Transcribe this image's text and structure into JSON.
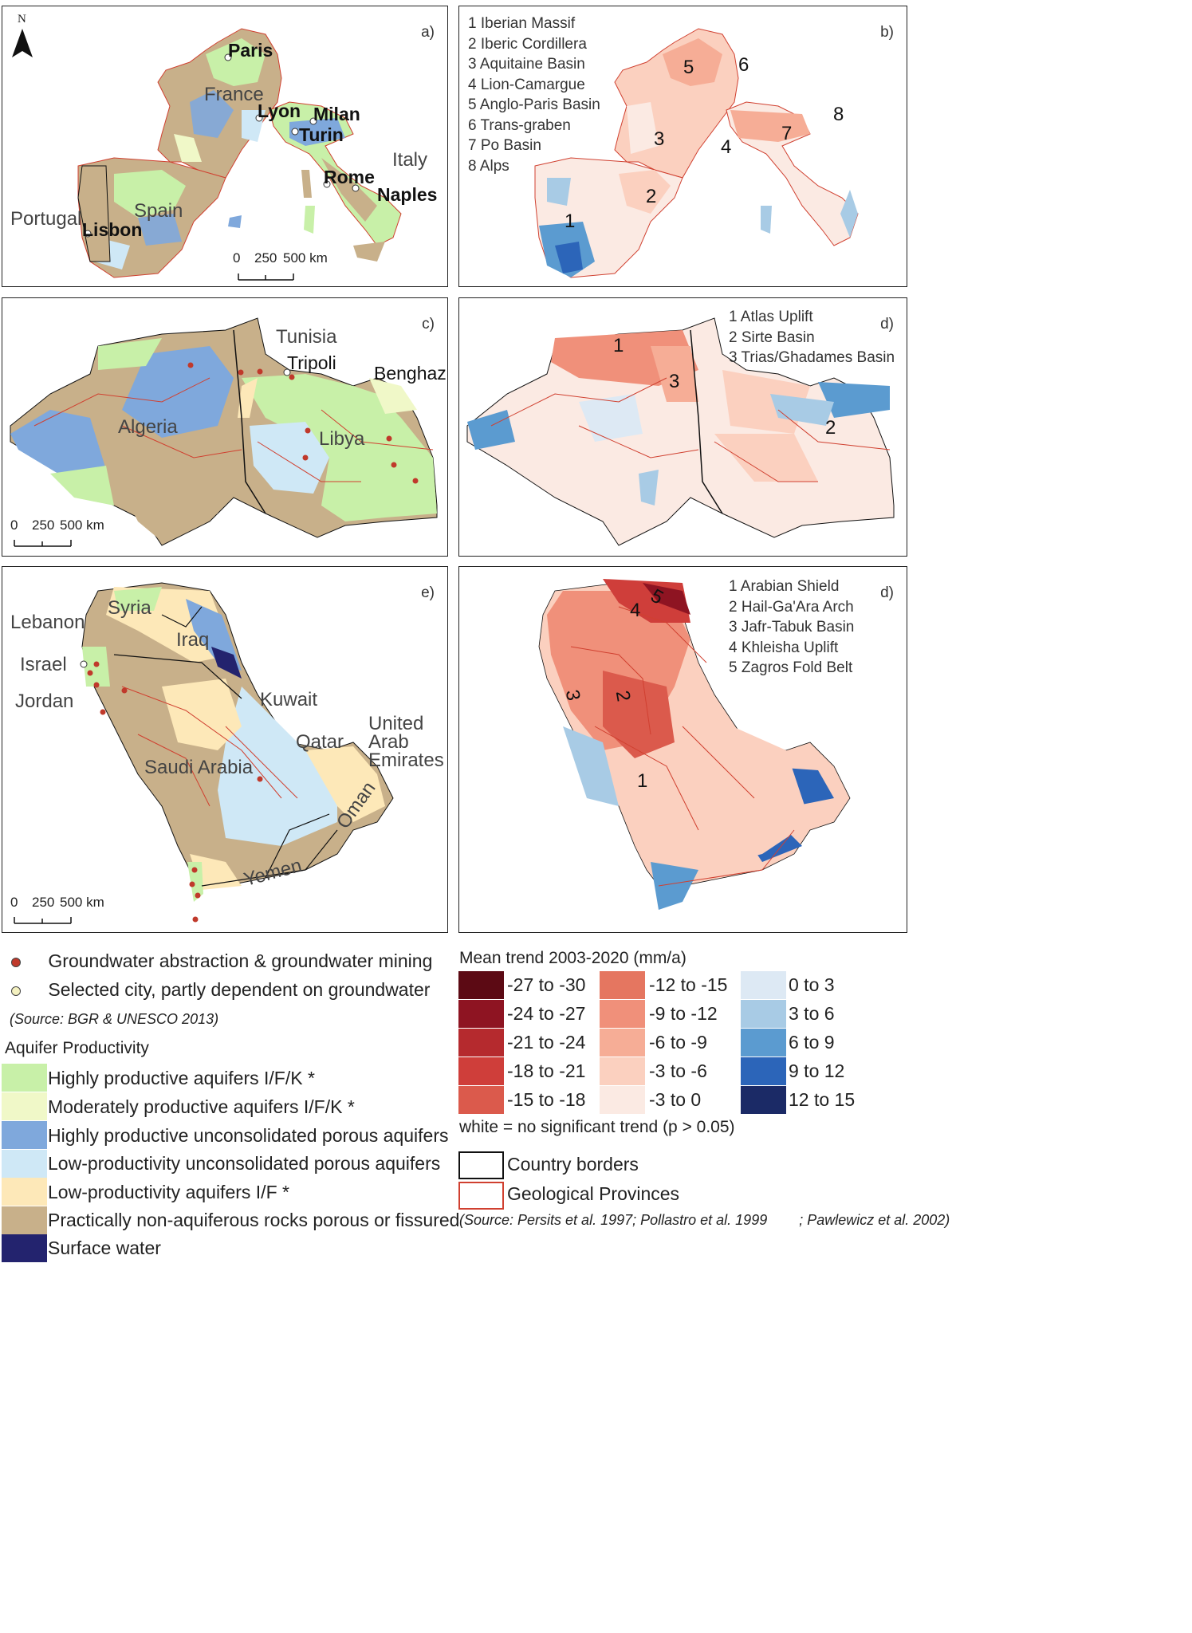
{
  "colors": {
    "highly_productive_fk": "#c8f0a8",
    "moderately_productive_fk": "#f0f8c8",
    "highly_productive_porous": "#7fa8dc",
    "low_productivity_porous": "#cfe8f6",
    "low_productivity_if": "#fde8b8",
    "non_aquiferous": "#c8b08a",
    "surface_water": "#23236e",
    "province_line": "#d04030",
    "border_line": "#111111"
  },
  "panels": {
    "a": {
      "label": "a)",
      "cities": [
        "Paris",
        "Lyon",
        "Milan",
        "Turin",
        "Rome",
        "Naples",
        "Lisbon"
      ],
      "countries": [
        "France",
        "Italy",
        "Spain",
        "Portugal"
      ],
      "scale": {
        "ticks": [
          "0",
          "250",
          "500 km"
        ]
      }
    },
    "b": {
      "label": "b)",
      "provinces": [
        "1 Iberian Massif",
        "2 Iberic Cordillera",
        "3 Aquitaine Basin",
        "4 Lion-Camargue",
        "5 Anglo-Paris Basin",
        "6 Trans-graben",
        "7 Po Basin",
        "8 Alps"
      ],
      "numbers": [
        "1",
        "2",
        "3",
        "4",
        "5",
        "6",
        "7",
        "8"
      ]
    },
    "c": {
      "label": "c)",
      "cities": [
        "Tripoli",
        "Benghazi"
      ],
      "countries": [
        "Tunisia",
        "Algeria",
        "Libya"
      ],
      "scale": {
        "ticks": [
          "0",
          "250",
          "500 km"
        ]
      }
    },
    "d": {
      "label": "d)",
      "provinces": [
        "1 Atlas Uplift",
        "2 Sirte Basin",
        "3 Trias/Ghadames Basin"
      ],
      "numbers": [
        "1",
        "2",
        "3"
      ]
    },
    "e": {
      "label": "e)",
      "countries": [
        "Syria",
        "Lebanon",
        "Iraq",
        "Israel",
        "Jordan",
        "Kuwait",
        "Qatar",
        "United",
        "Arab",
        "Emirates",
        "Saudi Arabia",
        "Oman",
        "Yemen"
      ],
      "scale": {
        "ticks": [
          "0",
          "250",
          "500 km"
        ]
      }
    },
    "f": {
      "label": "d)",
      "provinces": [
        "1 Arabian Shield",
        "2 Hail-Ga'Ara Arch",
        "3 Jafr-Tabuk Basin",
        "4 Khleisha Uplift",
        "5 Zagros Fold Belt"
      ],
      "numbers": [
        "1",
        "2",
        "3",
        "4",
        "5"
      ]
    }
  },
  "north_arrow": "N",
  "legend_left": {
    "point_legend": [
      {
        "label": "Groundwater abstraction & groundwater mining",
        "color": "#c0392b"
      },
      {
        "label": "Selected city, partly dependent on groundwater",
        "color": "#f4f1c0"
      }
    ],
    "source": "(Source: BGR & UNESCO 2013)",
    "title": "Aquifer Productivity",
    "items": [
      {
        "label": "Highly productive aquifers I/F/K *",
        "color": "#c8f0a8"
      },
      {
        "label": "Moderately productive aquifers I/F/K *",
        "color": "#f0f8c8"
      },
      {
        "label": "Highly productive unconsolidated porous aquifers",
        "color": "#7fa8dc"
      },
      {
        "label": "Low-productivity unconsolidated porous aquifers",
        "color": "#cfe8f6"
      },
      {
        "label": "Low-productivity aquifers I/F *",
        "color": "#fde8b8"
      },
      {
        "label": "Practically non-aquiferous rocks porous or fissured",
        "color": "#c8b08a"
      },
      {
        "label": "Surface water",
        "color": "#23236e"
      }
    ]
  },
  "legend_right": {
    "title": "Mean trend 2003-2020 (mm/a)",
    "columns": [
      [
        {
          "label": "-27 to -30",
          "color": "#5c0a14"
        },
        {
          "label": "-24 to -27",
          "color": "#8e1422"
        },
        {
          "label": "-21 to -24",
          "color": "#b52a2e"
        },
        {
          "label": "-18 to -21",
          "color": "#cf3e3a"
        },
        {
          "label": "-15 to -18",
          "color": "#db5a4c"
        }
      ],
      [
        {
          "label": "-12 to -15",
          "color": "#e57660"
        },
        {
          "label": "-9 to -12",
          "color": "#f0907a"
        },
        {
          "label": "-6 to -9",
          "color": "#f6ad96"
        },
        {
          "label": "-3 to -6",
          "color": "#fbd0bf"
        },
        {
          "label": "-3 to 0",
          "color": "#fbeae3"
        }
      ],
      [
        {
          "label": "0 to 3",
          "color": "#dde9f4"
        },
        {
          "label": "3 to 6",
          "color": "#a8cbe5"
        },
        {
          "label": "6 to 9",
          "color": "#5b9bd0"
        },
        {
          "label": "9 to 12",
          "color": "#2c65b9"
        },
        {
          "label": "12 to 15",
          "color": "#1b2a66"
        }
      ]
    ],
    "note": "white = no significant trend (p > 0.05)",
    "lines": [
      {
        "label": "Country borders",
        "color": "#111111"
      },
      {
        "label": "Geological Provinces",
        "color": "#d04030"
      }
    ],
    "source": "(Source: Persits et al. 1997; Pollastro et al. 1999        ; Pawlewicz et al. 2002)"
  }
}
